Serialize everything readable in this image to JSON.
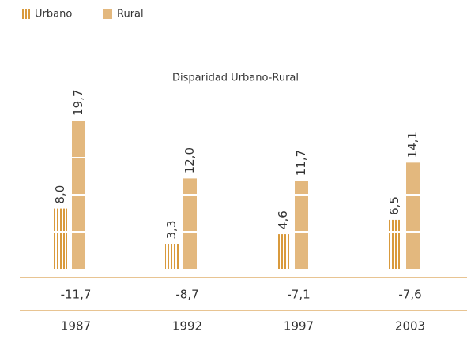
{
  "chart_data": {
    "type": "bar",
    "title": "Disparidad Urbano-Rural",
    "categories": [
      "1987",
      "1992",
      "1997",
      "2003"
    ],
    "series": [
      {
        "name": "Urbano",
        "color": "#d99a3c",
        "values": [
          8.0,
          3.3,
          4.6,
          6.5
        ],
        "value_labels": [
          "8,0",
          "3,3",
          "4,6",
          "6,5"
        ]
      },
      {
        "name": "Rural",
        "color": "#e3b87e",
        "values": [
          19.7,
          12.0,
          11.7,
          14.1
        ],
        "value_labels": [
          "19,7",
          "12,0",
          "11,7",
          "14,1"
        ]
      }
    ],
    "disparity": {
      "values": [
        -11.7,
        -8.7,
        -7.1,
        -7.6
      ],
      "value_labels": [
        "-11,7",
        "-8,7",
        "-7,1",
        "-7,6"
      ]
    },
    "ylim": [
      0,
      20
    ]
  }
}
